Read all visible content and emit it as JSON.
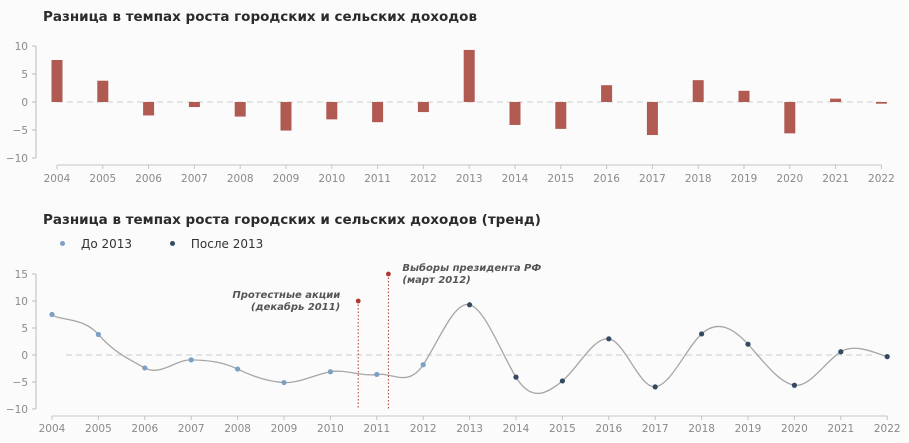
{
  "chart_data": [
    {
      "type": "bar",
      "title": "Разница в темпах роста городских и сельских доходов",
      "categories": [
        "2004",
        "2005",
        "2006",
        "2007",
        "2008",
        "2009",
        "2010",
        "2011",
        "2012",
        "2013",
        "2014",
        "2015",
        "2016",
        "2017",
        "2018",
        "2019",
        "2020",
        "2021",
        "2022"
      ],
      "values": [
        7.5,
        3.8,
        -2.4,
        -0.9,
        -2.6,
        -5.1,
        -3.1,
        -3.6,
        -1.8,
        9.3,
        -4.1,
        -4.8,
        3.0,
        -5.9,
        3.9,
        2.0,
        -5.6,
        0.6,
        -0.3
      ],
      "yticks": [
        10,
        5,
        0,
        -5,
        -10
      ],
      "ylim": [
        -10,
        10
      ],
      "color": "#b05a52"
    },
    {
      "type": "line",
      "title": "Разница в темпах роста городских и сельских доходов (тренд)",
      "categories": [
        "2004",
        "2005",
        "2006",
        "2007",
        "2008",
        "2009",
        "2010",
        "2011",
        "2012",
        "2013",
        "2014",
        "2015",
        "2016",
        "2017",
        "2018",
        "2019",
        "2020",
        "2021",
        "2022"
      ],
      "values": [
        7.5,
        3.8,
        -2.4,
        -0.9,
        -2.6,
        -5.1,
        -3.1,
        -3.6,
        -1.8,
        9.3,
        -4.1,
        -4.8,
        3.0,
        -5.9,
        3.9,
        2.0,
        -5.6,
        0.6,
        -0.3
      ],
      "yticks": [
        15,
        10,
        5,
        0,
        -5,
        -10
      ],
      "ylim": [
        -10,
        15
      ],
      "series": [
        {
          "name": "До 2013",
          "color": "#7ba0c4"
        },
        {
          "name": "После 2013",
          "color": "#344a63"
        }
      ],
      "annotations": [
        {
          "lines": [
            "Протестные акции",
            "(декабрь 2011)"
          ],
          "x": 2010.6,
          "y": 10,
          "align": "right"
        },
        {
          "lines": [
            "Выборы президента РФ",
            "(март 2012)"
          ],
          "x": 2011.25,
          "y": 15,
          "align": "left"
        }
      ],
      "colors": {
        "trend": "#a6a6a6",
        "marker": "#b03a32",
        "zero": "#d6d6d6"
      }
    }
  ]
}
